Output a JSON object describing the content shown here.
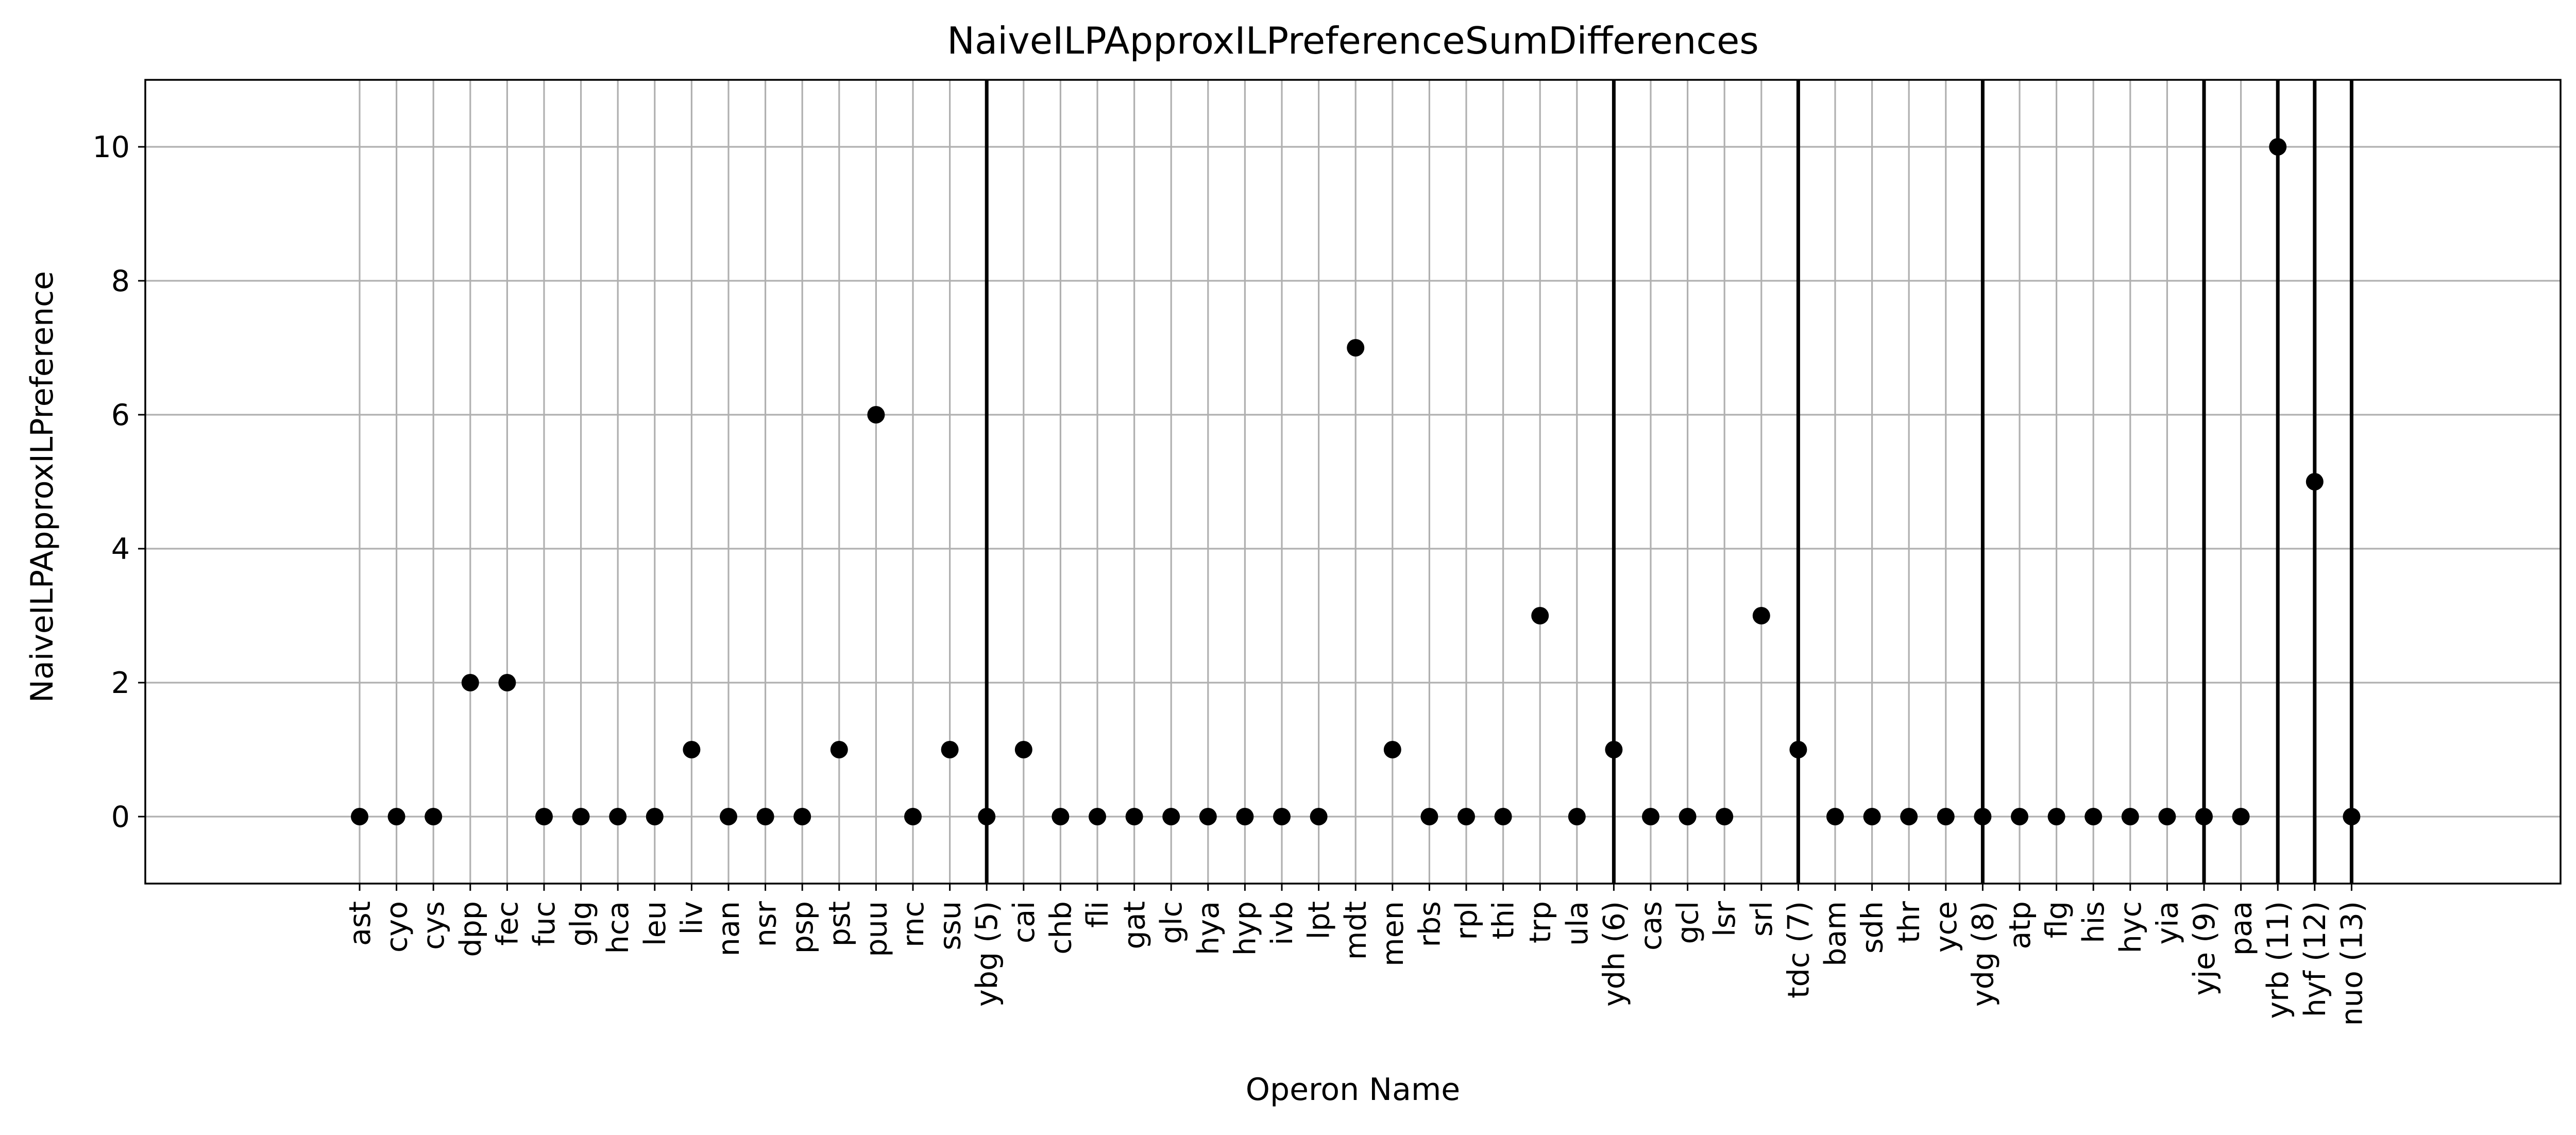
{
  "chart_data": {
    "type": "scatter",
    "title": "NaiveILPApproxILPreferenceSumDifferences",
    "xlabel": "Operon Name",
    "ylabel": "NaiveILPApproxILPreference",
    "ylim": [
      -1,
      11
    ],
    "yticks": [
      0,
      2,
      4,
      6,
      8,
      10
    ],
    "grid": true,
    "categories": [
      "ast",
      "cyo",
      "cys",
      "dpp",
      "fec",
      "fuc",
      "glg",
      "hca",
      "leu",
      "liv",
      "nan",
      "nsr",
      "psp",
      "pst",
      "puu",
      "rnc",
      "ssu",
      "ybg (5)",
      "cai",
      "chb",
      "fli",
      "gat",
      "glc",
      "hya",
      "hyp",
      "ivb",
      "lpt",
      "mdt",
      "men",
      "rbs",
      "rpl",
      "thi",
      "trp",
      "ula",
      "ydh (6)",
      "cas",
      "gcl",
      "lsr",
      "srl",
      "tdc (7)",
      "bam",
      "sdh",
      "thr",
      "yce",
      "ydg (8)",
      "atp",
      "flg",
      "his",
      "hyc",
      "yia",
      "yje (9)",
      "paa",
      "yrb (11)",
      "hyf (12)",
      "nuo (13)"
    ],
    "values": [
      0,
      0,
      0,
      2,
      2,
      0,
      0,
      0,
      0,
      1,
      0,
      0,
      0,
      1,
      6,
      0,
      1,
      0,
      1,
      0,
      0,
      0,
      0,
      0,
      0,
      0,
      0,
      7,
      1,
      0,
      0,
      0,
      3,
      0,
      1,
      0,
      0,
      0,
      3,
      1,
      0,
      0,
      0,
      0,
      0,
      0,
      0,
      0,
      0,
      0,
      0,
      0,
      10,
      5,
      0
    ],
    "group_separators": [
      "ybg (5)",
      "ydh (6)",
      "tdc (7)",
      "ydg (8)",
      "yje (9)",
      "yrb (11)",
      "hyf (12)",
      "nuo (13)"
    ]
  }
}
